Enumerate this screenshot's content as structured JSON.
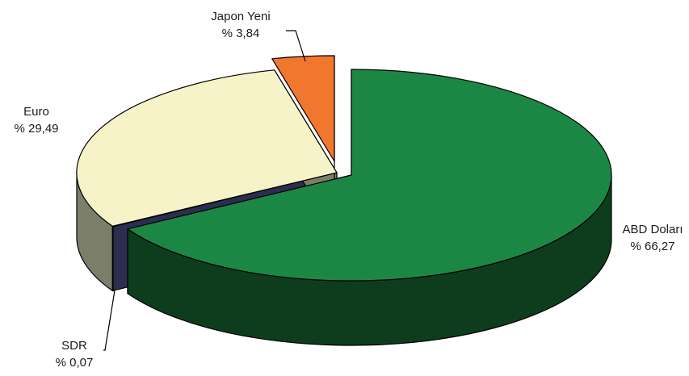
{
  "chart_data": {
    "type": "pie",
    "title": "",
    "slices": [
      {
        "label": "ABD Doları",
        "value_text": "% 66,27",
        "value": 66.27,
        "color": "#1c8744",
        "side_color": "#0e3d1e",
        "exploded": true
      },
      {
        "label": "SDR",
        "value_text": "% 0,07",
        "value": 0.07,
        "color": "#3a3f66",
        "side_color": "#2b2e4e",
        "exploded": false
      },
      {
        "label": "Euro",
        "value_text": "% 29,49",
        "value": 29.49,
        "color": "#f7f3c8",
        "side_color": "#7b7f6a",
        "exploded": false
      },
      {
        "label": "Japon Yeni",
        "value_text": "% 3,84",
        "value": 3.84,
        "color": "#f2772e",
        "side_color": "#8a3c1c",
        "exploded": true
      }
    ]
  }
}
